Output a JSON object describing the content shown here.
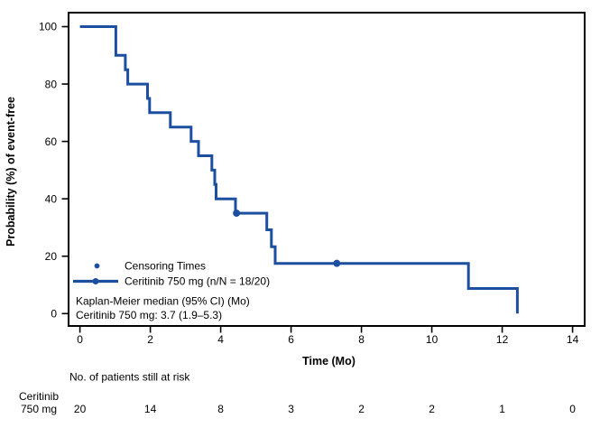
{
  "chart_data": {
    "type": "line",
    "subtype": "kaplan_meier_step",
    "title": "",
    "xlabel": "Time (Mo)",
    "ylabel": "Probability (%) of event-free",
    "xlim": [
      0,
      14
    ],
    "ylim": [
      0,
      100
    ],
    "xticks": [
      0,
      2,
      4,
      6,
      8,
      10,
      12,
      14
    ],
    "yticks": [
      0,
      20,
      40,
      60,
      80,
      100
    ],
    "grid": false,
    "legend_position": "inside-bottom-left",
    "series": [
      {
        "name": "Ceritinib 750 mg (n/N = 18/20)",
        "color": "#1d4fa1",
        "start": [
          0,
          100
        ],
        "drops": [
          [
            1.02,
            90
          ],
          [
            1.29,
            85
          ],
          [
            1.36,
            80
          ],
          [
            1.92,
            75
          ],
          [
            1.98,
            70
          ],
          [
            2.57,
            65
          ],
          [
            3.16,
            60
          ],
          [
            3.37,
            55
          ],
          [
            3.75,
            50
          ],
          [
            3.83,
            45
          ],
          [
            3.87,
            40
          ],
          [
            4.42,
            35
          ],
          [
            5.31,
            29.2
          ],
          [
            5.44,
            23.3
          ],
          [
            5.55,
            17.5
          ],
          [
            11.04,
            8.75
          ],
          [
            12.43,
            0
          ]
        ],
        "censor_points": [
          [
            4.45,
            35
          ],
          [
            7.3,
            17.5
          ]
        ]
      }
    ],
    "legend": {
      "censor_label": "Censoring Times",
      "series_label": "Ceritinib 750 mg (n/N = 18/20)"
    },
    "annotation": {
      "line1": "Kaplan-Meier median (95% CI) (Mo)",
      "line2": "Ceritinib 750 mg: 3.7 (1.9–5.3)"
    },
    "risk_table": {
      "title": "No. of patients still at risk",
      "row_label_line1": "Ceritinib",
      "row_label_line2": "750 mg",
      "times": [
        0,
        2,
        4,
        6,
        8,
        10,
        12,
        14
      ],
      "counts": [
        20,
        14,
        8,
        3,
        2,
        2,
        1,
        0
      ]
    },
    "colors": {
      "curve": "#1d4fa1",
      "axis": "#000000",
      "text": "#000000",
      "background": "#ffffff"
    }
  }
}
